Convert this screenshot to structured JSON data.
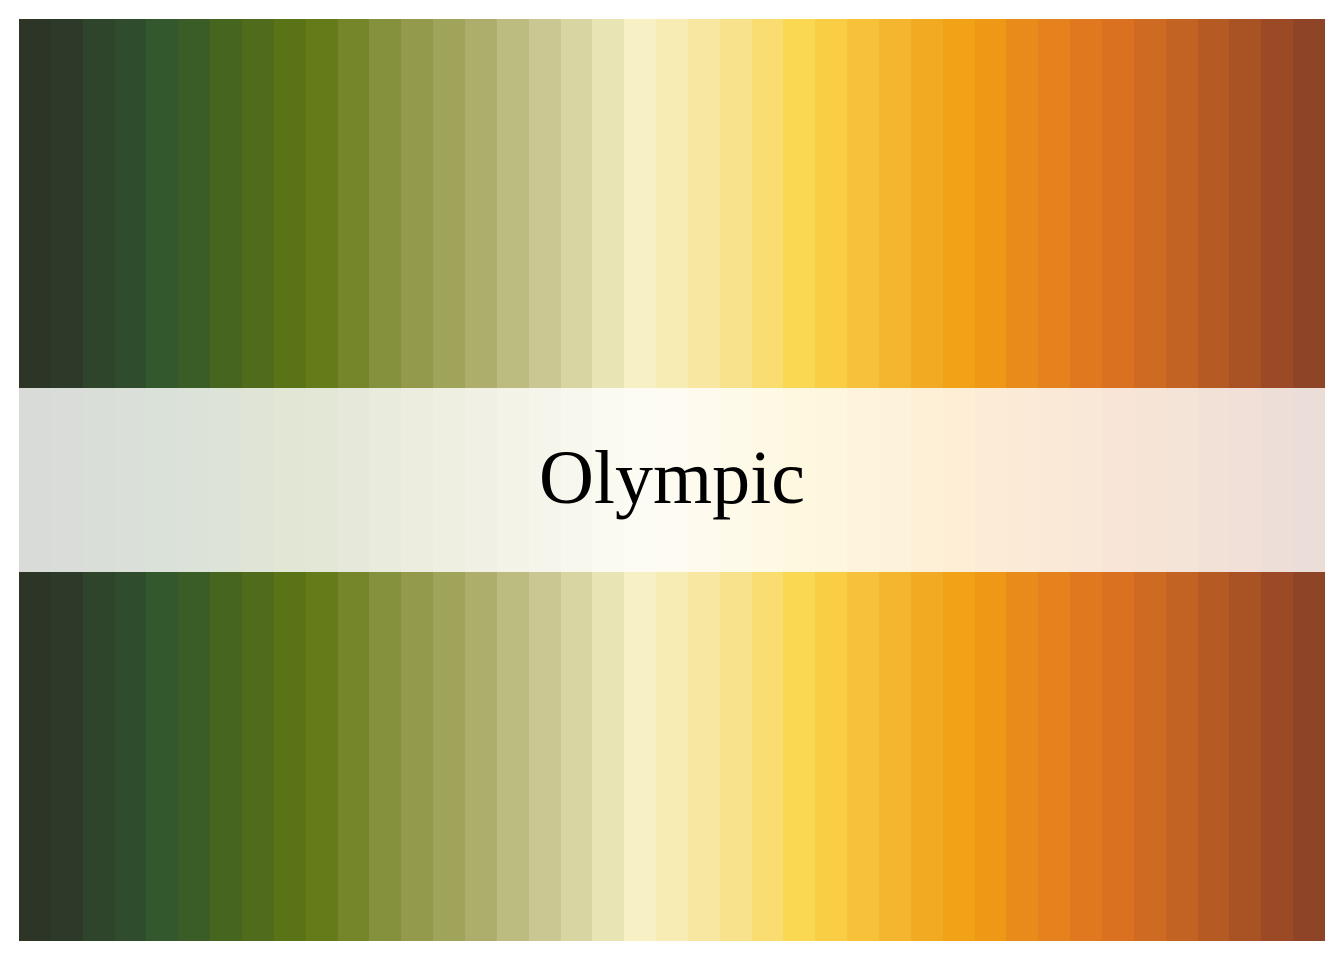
{
  "palette": {
    "name": "Olympic",
    "colors": [
      "#2d3527",
      "#2d3a2a",
      "#2e452c",
      "#2f4c2d",
      "#33582d",
      "#3a5d27",
      "#46651f",
      "#4f6b1b",
      "#5b7317",
      "#657b1a",
      "#75852a",
      "#86913d",
      "#949a4b",
      "#a0a45a",
      "#aeae6c",
      "#bcbb80",
      "#cac793",
      "#d9d5a2",
      "#e9e4b3",
      "#f6f0c4",
      "#f7ecb4",
      "#f8e7a0",
      "#f9e28c",
      "#fadd70",
      "#fbd852",
      "#f9cd44",
      "#f7c13a",
      "#f5b62f",
      "#f3aa23",
      "#f2a216",
      "#ef9816",
      "#e98b1a",
      "#e5821d",
      "#e0781f",
      "#da7120",
      "#ce6a21",
      "#c26223",
      "#b55a23",
      "#a95224",
      "#9c4a25",
      "#8e4426"
    ]
  }
}
